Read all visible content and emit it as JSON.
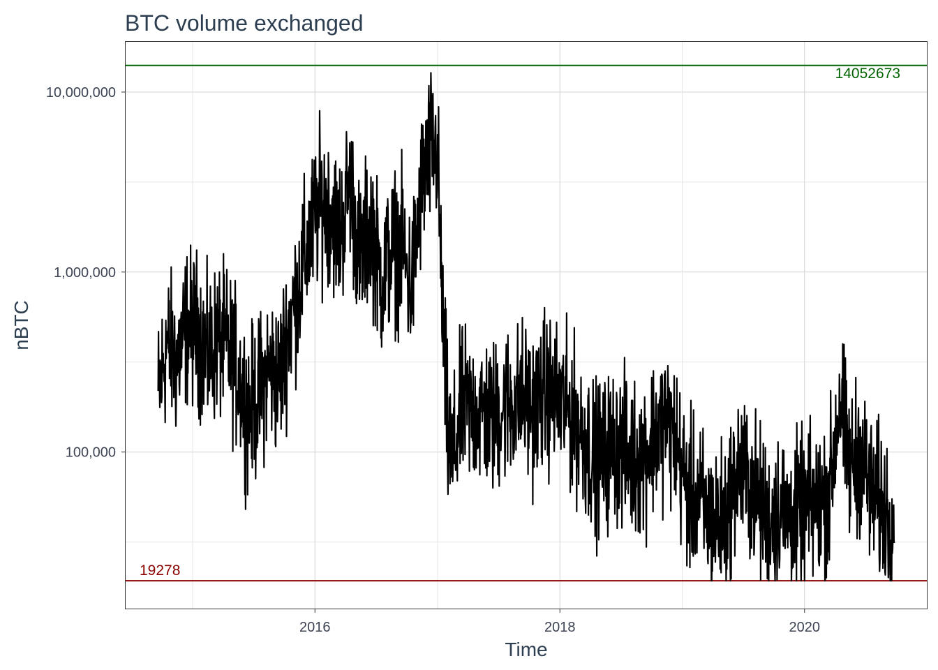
{
  "chart_data": {
    "type": "line",
    "title": "BTC volume exchanged",
    "xlabel": "Time",
    "ylabel": "nBTC",
    "y_scale": "log10",
    "xlim": [
      "2014-06-15",
      "2020-12-31"
    ],
    "ylim": [
      13500,
      19000000
    ],
    "x_ticks": [
      {
        "value": "2016-01-01",
        "label": "2016"
      },
      {
        "value": "2018-01-01",
        "label": "2018"
      },
      {
        "value": "2020-01-01",
        "label": "2020"
      }
    ],
    "y_ticks": [
      {
        "value": 100000,
        "label": "100,000"
      },
      {
        "value": 1000000,
        "label": "1,000,000"
      },
      {
        "value": 10000000,
        "label": "10,000,000"
      }
    ],
    "grid": true,
    "reference_lines": [
      {
        "value": 14052673,
        "label": "14052673",
        "color": "#006400"
      },
      {
        "value": 19278,
        "label": "19278",
        "color": "#8b0000"
      }
    ],
    "series": [
      {
        "color": "#000000",
        "x": [
          "2014-09-20",
          "2014-10-15",
          "2014-11-15",
          "2014-12-15",
          "2015-01-15",
          "2015-02-15",
          "2015-03-15",
          "2015-04-15",
          "2015-05-15",
          "2015-06-15",
          "2015-07-15",
          "2015-08-15",
          "2015-09-15",
          "2015-10-15",
          "2015-11-15",
          "2015-12-15",
          "2016-01-15",
          "2016-02-15",
          "2016-03-15",
          "2016-04-15",
          "2016-05-15",
          "2016-06-15",
          "2016-07-15",
          "2016-08-15",
          "2016-09-15",
          "2016-10-15",
          "2016-11-15",
          "2016-12-15",
          "2017-01-01",
          "2017-01-15",
          "2017-02-01",
          "2017-02-15",
          "2017-03-15",
          "2017-04-15",
          "2017-05-15",
          "2017-06-15",
          "2017-07-15",
          "2017-08-15",
          "2017-09-15",
          "2017-10-15",
          "2017-11-15",
          "2017-12-15",
          "2018-01-15",
          "2018-02-15",
          "2018-03-15",
          "2018-04-15",
          "2018-05-15",
          "2018-06-15",
          "2018-07-15",
          "2018-08-15",
          "2018-09-15",
          "2018-10-15",
          "2018-11-15",
          "2018-12-15",
          "2019-01-15",
          "2019-02-15",
          "2019-03-15",
          "2019-04-15",
          "2019-05-15",
          "2019-06-15",
          "2019-07-15",
          "2019-08-15",
          "2019-09-15",
          "2019-10-15",
          "2019-11-15",
          "2019-12-15",
          "2020-01-15",
          "2020-02-15",
          "2020-03-15",
          "2020-04-15",
          "2020-05-15",
          "2020-06-15",
          "2020-07-15",
          "2020-08-15",
          "2020-09-15",
          "2020-09-25"
        ],
        "values": [
          200000,
          400000,
          320000,
          500000,
          480000,
          330000,
          420000,
          380000,
          280000,
          170000,
          200000,
          290000,
          250000,
          500000,
          850000,
          1500000,
          2400000,
          2300000,
          1600000,
          3200000,
          1100000,
          2000000,
          900000,
          1300000,
          1400000,
          800000,
          3000000,
          5000000,
          4500000,
          600000,
          120000,
          90000,
          180000,
          170000,
          170000,
          150000,
          180000,
          190000,
          200000,
          170000,
          220000,
          200000,
          180000,
          150000,
          120000,
          90000,
          95000,
          110000,
          100000,
          90000,
          100000,
          130000,
          150000,
          110000,
          60000,
          55000,
          45000,
          40000,
          45000,
          80000,
          70000,
          55000,
          40000,
          50000,
          45000,
          45000,
          50000,
          50000,
          60000,
          200000,
          80000,
          100000,
          60000,
          50000,
          45000,
          40000
        ]
      }
    ]
  }
}
